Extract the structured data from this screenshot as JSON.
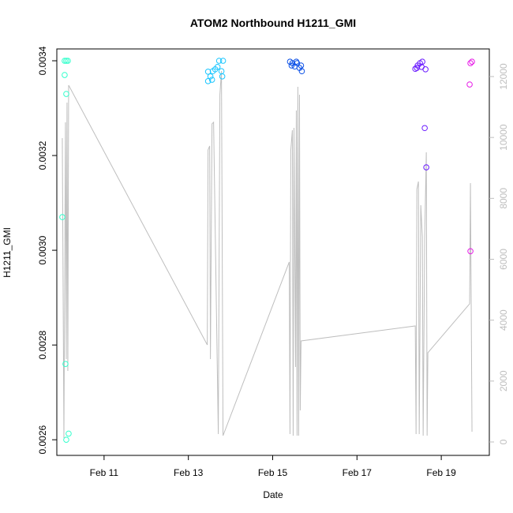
{
  "chart_data": {
    "type": "scatter",
    "title": "ATOM2 Northbound H1211_GMI",
    "xlabel": "Date",
    "ylabel": "H1211_GMI",
    "xlim": [
      9.879,
      20.14
    ],
    "xticks": [
      {
        "value": 11,
        "label": "Feb 11"
      },
      {
        "value": 13,
        "label": "Feb 13"
      },
      {
        "value": 15,
        "label": "Feb 15"
      },
      {
        "value": 17,
        "label": "Feb 17"
      },
      {
        "value": 19,
        "label": "Feb 19"
      }
    ],
    "ylim": [
      0.002567,
      0.003425
    ],
    "yticks": [
      0.0026,
      0.0028,
      {
        "value": 0.003,
        "label": "0.0030"
      },
      0.0032,
      0.0034
    ],
    "y2lim": [
      -441,
      12907
    ],
    "y2ticks": [
      0,
      2000,
      4000,
      6000,
      8000,
      10000,
      12000
    ],
    "y2color": "#bebebe",
    "series": [
      {
        "color": "#33ffcc",
        "x": [
          10.009,
          10.065,
          10.103,
          10.14,
          10.065,
          10.103,
          10.084,
          10.159,
          10.103
        ],
        "values": [
          0.00307,
          0.0034,
          0.0034,
          0.0034,
          0.00337,
          0.00333,
          0.00276,
          0.002613,
          0.0026
        ]
      },
      {
        "color": "#1ac6ff",
        "x": [
          13.467,
          13.467,
          13.523,
          13.579,
          13.636,
          13.692,
          13.729,
          13.785,
          13.804,
          13.822,
          13.561
        ],
        "values": [
          0.003377,
          0.003357,
          0.003367,
          0.003378,
          0.003382,
          0.003387,
          0.0034,
          0.003378,
          0.003367,
          0.0034,
          0.00336
        ]
      },
      {
        "color": "#0a4fe6",
        "x": [
          15.411,
          15.467,
          15.523,
          15.579,
          15.636,
          15.692,
          15.449,
          15.561,
          15.673
        ],
        "values": [
          0.003398,
          0.003395,
          0.003388,
          0.003395,
          0.003385,
          0.003378,
          0.00339,
          0.003398,
          0.00339
        ]
      },
      {
        "color": "#6a1aff",
        "x": [
          18.383,
          18.439,
          18.495,
          18.551,
          18.607,
          18.645,
          18.626,
          18.533,
          18.421
        ],
        "values": [
          0.003383,
          0.00339,
          0.003395,
          0.003398,
          0.003258,
          0.003175,
          0.003382,
          0.003387,
          0.003385
        ]
      },
      {
        "color": "#e61ae6",
        "x": [
          19.692,
          19.729,
          19.673,
          19.692
        ],
        "values": [
          0.003395,
          0.003398,
          0.00335,
          0.002998
        ]
      },
      {
        "axis": "y2",
        "color": "#bebebe",
        "x": [
          10.009,
          10.047,
          10.084,
          10.103,
          10.121,
          10.14,
          10.159,
          13.449,
          13.467,
          13.505,
          13.523,
          13.561,
          13.598,
          13.71,
          13.748,
          13.785,
          13.822,
          15.393,
          15.411,
          15.43,
          15.467,
          15.486,
          15.505,
          15.542,
          15.561,
          15.579,
          15.598,
          15.617,
          15.636,
          15.654,
          15.673,
          18.383,
          18.402,
          18.421,
          18.458,
          18.477,
          18.514,
          18.551,
          18.57,
          18.607,
          18.645,
          18.664,
          18.682,
          19.673,
          19.692,
          19.729
        ],
        "values": [
          9979,
          130,
          10498,
          2722,
          11146,
          2333,
          11716,
          3188,
          9590,
          9720,
          2722,
          10446,
          10498,
          259,
          11405,
          12182,
          207,
          5910,
          259,
          9590,
          10238,
          207,
          10316,
          2462,
          10886,
          207,
          11664,
          207,
          11405,
          1037,
          3318,
          3810,
          259,
          8294,
          8554,
          259,
          7776,
          6739,
          207,
          6739,
          9513,
          207,
          2929,
          4536,
          8502,
          337
        ]
      }
    ]
  }
}
